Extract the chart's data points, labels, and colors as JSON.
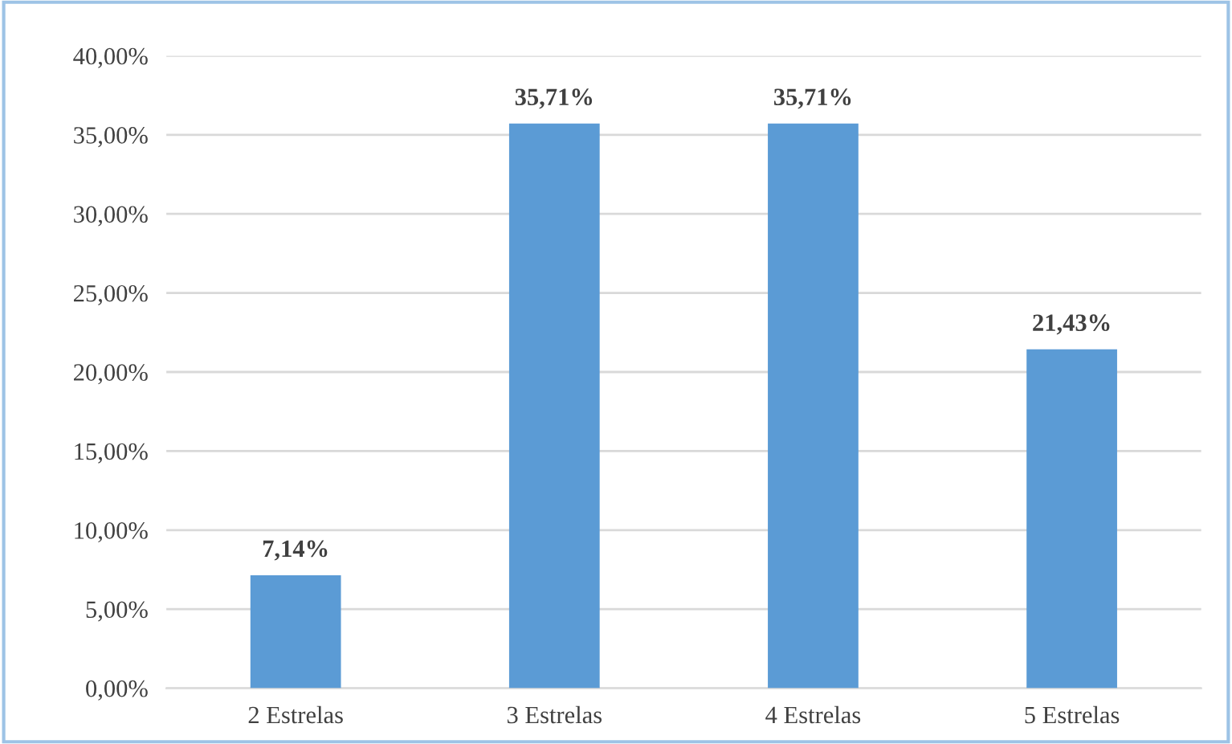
{
  "chart_data": {
    "type": "bar",
    "categories": [
      "2 Estrelas",
      "3 Estrelas",
      "4 Estrelas",
      "5 Estrelas"
    ],
    "values": [
      7.14,
      35.71,
      35.71,
      21.43
    ],
    "color": "#5b9bd5",
    "value_labels": [
      "7,14%",
      "35,71%",
      "35,71%",
      "21,43%"
    ],
    "ylim": [
      0,
      40
    ],
    "yticks": [
      {
        "value": 0,
        "label": "0,00%"
      },
      {
        "value": 5,
        "label": "5,00%"
      },
      {
        "value": 10,
        "label": "10,00%"
      },
      {
        "value": 15,
        "label": "15,00%"
      },
      {
        "value": 20,
        "label": "20,00%"
      },
      {
        "value": 25,
        "label": "25,00%"
      },
      {
        "value": 30,
        "label": "30,00%"
      },
      {
        "value": 35,
        "label": "35,00%"
      },
      {
        "value": 40,
        "label": "40,00%"
      }
    ],
    "grid": "y",
    "legend": false
  }
}
